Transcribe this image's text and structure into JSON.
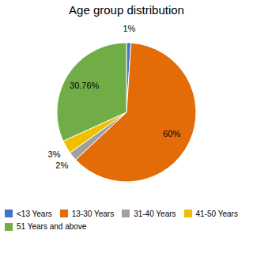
{
  "chart_data": {
    "type": "pie",
    "title": "Age group distribution",
    "categories": [
      "<13 Years",
      "13-30 Years",
      "31-40 Years",
      "41-50 Years",
      "51 Years and above"
    ],
    "values": [
      1,
      60,
      2,
      3,
      30.76
    ],
    "value_labels": [
      "1%",
      "60%",
      "2%",
      "3%",
      "30.76%"
    ],
    "colors": [
      "#4472C4",
      "#E36C09",
      "#A0A0A0",
      "#F0C000",
      "#70AD47"
    ],
    "data_labels": true,
    "legend": "bottom"
  }
}
